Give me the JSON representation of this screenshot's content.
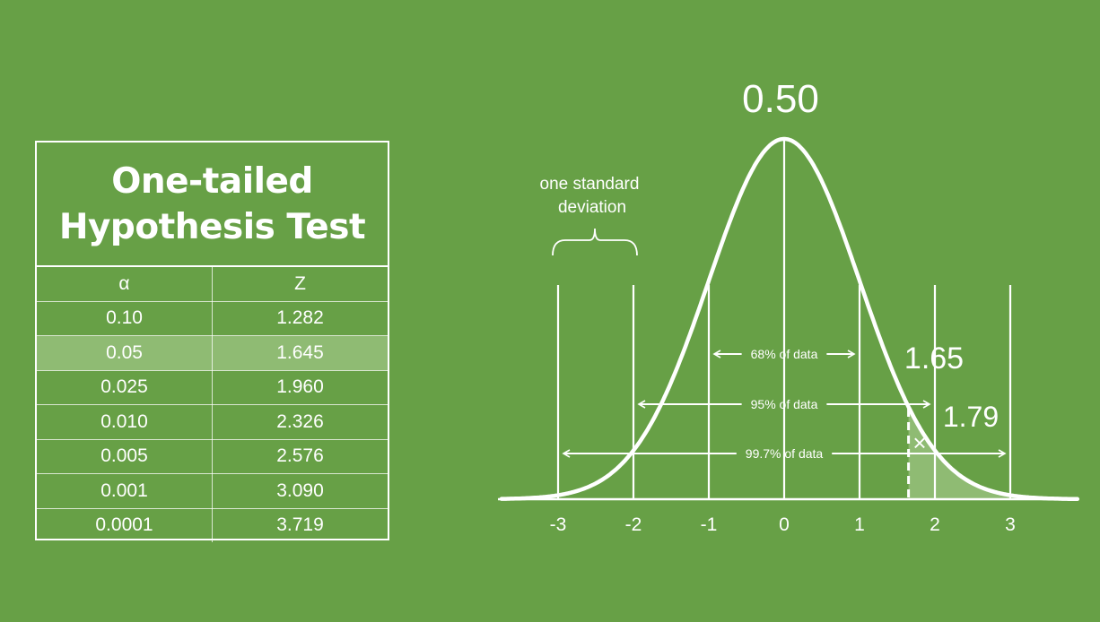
{
  "table": {
    "title_line1": "One-tailed",
    "title_line2": "Hypothesis Test",
    "headers": [
      "α",
      "Z"
    ],
    "rows": [
      [
        "0.10",
        "1.282"
      ],
      [
        "0.05",
        "1.645"
      ],
      [
        "0.025",
        "1.960"
      ],
      [
        "0.010",
        "2.326"
      ],
      [
        "0.005",
        "2.576"
      ],
      [
        "0.001",
        "3.090"
      ],
      [
        "0.0001",
        "3.719"
      ]
    ],
    "highlighted_row": 1
  },
  "curve": {
    "peak_label": "0.50",
    "std_label_line1": "one standard",
    "std_label_line2": "deviation",
    "critical_label": "1.65",
    "observed_label": "1.79",
    "observed_marker": "×",
    "critical_z": 1.65,
    "observed_z": 1.79,
    "axis_ticks": [
      "-3",
      "-2",
      "-1",
      "0",
      "1",
      "2",
      "3"
    ],
    "ranges": [
      {
        "label": "68% of data",
        "sd": 1
      },
      {
        "label": "95% of data",
        "sd": 2
      },
      {
        "label": "99.7% of data",
        "sd": 3
      }
    ]
  },
  "colors": {
    "background": "#67a046",
    "highlight_row": "#8fbb73",
    "shaded_tail": "#8fbb73",
    "foreground": "#ffffff"
  }
}
